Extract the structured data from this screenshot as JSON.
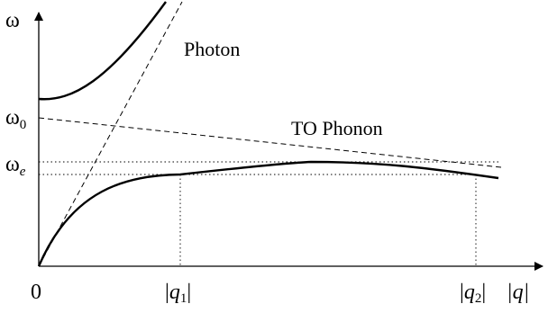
{
  "diagram": {
    "y_axis_label": "ω",
    "x_axis_label": "|q|",
    "origin_label": "0",
    "omega_0": {
      "base": "ω",
      "sub": "0"
    },
    "omega_e": {
      "base": "ω",
      "sub": "e"
    },
    "curve_labels": {
      "photon": "Photon",
      "to_phonon": "TO Phonon"
    },
    "q1": {
      "bar_left": "|",
      "base": "q",
      "sub": "1",
      "bar_right": "|"
    },
    "q2": {
      "bar_left": "|",
      "base": "q",
      "sub": "2",
      "bar_right": "|"
    }
  }
}
